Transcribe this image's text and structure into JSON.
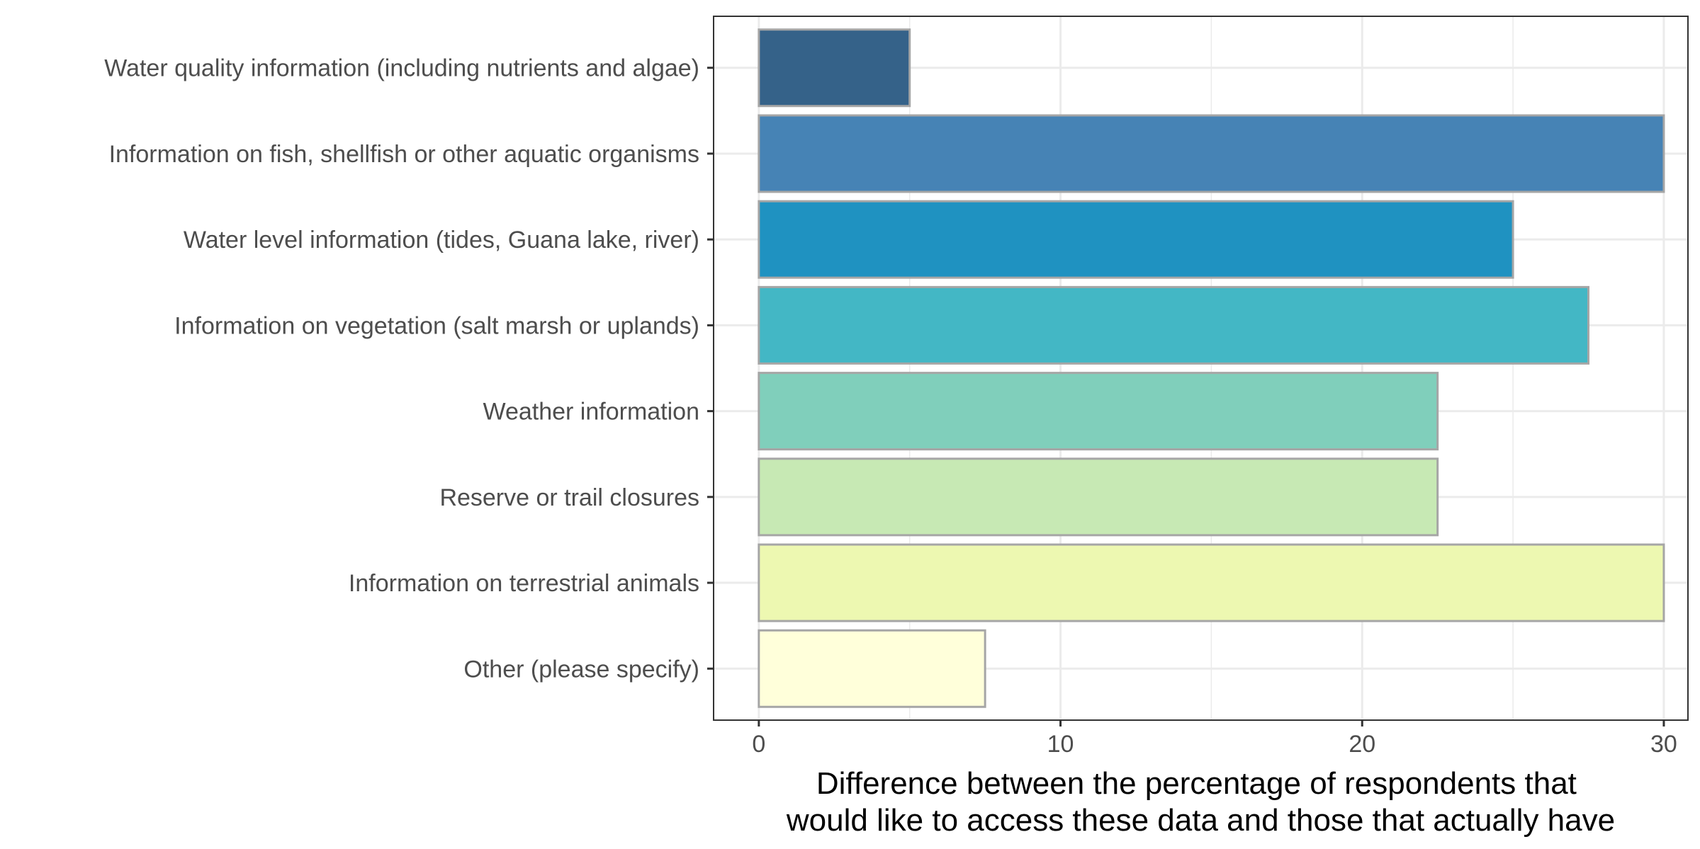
{
  "chart_data": {
    "type": "bar",
    "orientation": "horizontal",
    "title": "",
    "xlabel_lines": [
      "Difference between the percentage of respondents that",
      "would like to access these data and those that actually have"
    ],
    "ylabel": "",
    "xlim": [
      -1.5,
      30.8
    ],
    "x_ticks": [
      0,
      10,
      20,
      30
    ],
    "grid": true,
    "legend": "none",
    "categories": [
      "Water quality information (including nutrients and algae)",
      "Information on fish, shellfish or other aquatic organisms",
      "Water level information (tides, Guana lake, river)",
      "Information on vegetation (salt marsh or uplands)",
      "Weather information",
      "Reserve or trail closures",
      "Information on terrestrial animals",
      "Other (please specify)"
    ],
    "values": [
      5,
      30,
      25,
      27.5,
      22.5,
      22.5,
      30,
      7.5
    ],
    "colors": [
      "#356289",
      "#4683b5",
      "#1f92c1",
      "#43b7c5",
      "#80cfbb",
      "#c7e9b4",
      "#edf8b1",
      "#ffffda"
    ],
    "bar_outline": "#a6a6a6"
  }
}
